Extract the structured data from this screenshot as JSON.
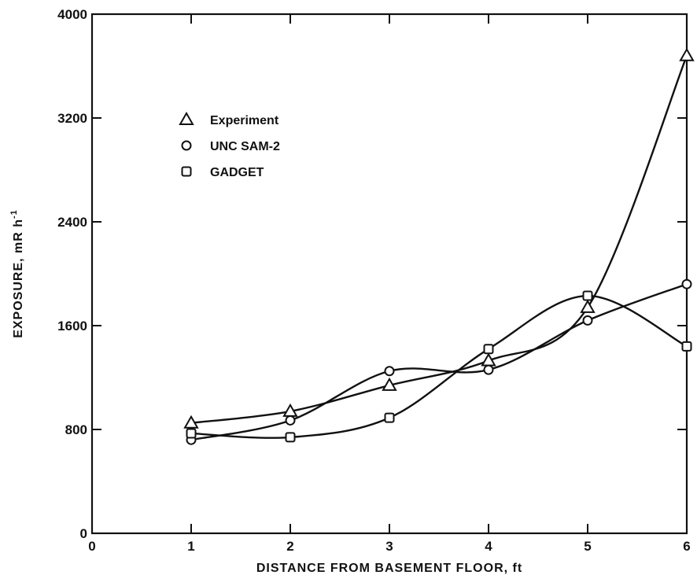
{
  "chart_data": {
    "type": "line",
    "xlabel": "DISTANCE  FROM  BASEMENT  FLOOR, ft",
    "ylabel": "EXPOSURE, mR h",
    "ylabel_superscript": "-1",
    "xlim": [
      0,
      6
    ],
    "ylim": [
      0,
      4000
    ],
    "x_ticks": [
      0,
      1,
      2,
      3,
      4,
      5,
      6
    ],
    "x_tick_labels": [
      "0",
      "1",
      "2",
      "3",
      "4",
      "5",
      "6"
    ],
    "y_ticks": [
      0,
      800,
      1600,
      2400,
      3200,
      4000
    ],
    "y_tick_labels": [
      "0",
      "800",
      "1600",
      "2400",
      "3200",
      "4000"
    ],
    "grid": false,
    "legend_position": "upper-left",
    "series": [
      {
        "name": "Experiment",
        "marker": "triangle",
        "x": [
          1,
          2,
          3,
          4,
          5,
          6
        ],
        "y": [
          850,
          940,
          1140,
          1330,
          1740,
          3680
        ]
      },
      {
        "name": "UNC SAM-2",
        "marker": "circle",
        "x": [
          1,
          2,
          3,
          4,
          5,
          6
        ],
        "y": [
          720,
          870,
          1250,
          1260,
          1640,
          1920
        ]
      },
      {
        "name": "GADGET",
        "marker": "square",
        "x": [
          1,
          2,
          3,
          4,
          5,
          6
        ],
        "y": [
          770,
          740,
          890,
          1420,
          1830,
          1440
        ]
      }
    ]
  }
}
